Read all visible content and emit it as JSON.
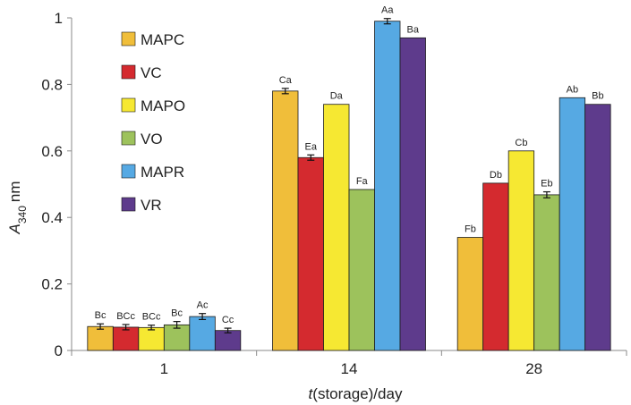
{
  "chart_data": {
    "type": "bar",
    "categories": [
      "1",
      "14",
      "28"
    ],
    "ylabel_main": "A",
    "ylabel_sub": "340",
    "ylabel_unit": "nm",
    "xlabel_italic": "t",
    "xlabel_rest": "(storage)/day",
    "ylim": [
      0,
      1
    ],
    "yticks": [
      "0",
      "0.2",
      "0.4",
      "0.6",
      "0.8",
      "1"
    ],
    "ytick_values": [
      0,
      0.2,
      0.4,
      0.6,
      0.8,
      1.0
    ],
    "legend_position": "top-left",
    "grid": false,
    "series": [
      {
        "name": "MAPC",
        "color": "#F0BE3A",
        "values": [
          0.072,
          0.78,
          0.34
        ],
        "errors": [
          0.008,
          0.008,
          0
        ],
        "labels": [
          "Bc",
          "Ca",
          "Fb"
        ]
      },
      {
        "name": "VC",
        "color": "#D42A2F",
        "values": [
          0.07,
          0.58,
          0.503
        ],
        "errors": [
          0.008,
          0.008,
          0
        ],
        "labels": [
          "BCc",
          "Ea",
          "Db"
        ]
      },
      {
        "name": "MAPO",
        "color": "#F6E832",
        "values": [
          0.069,
          0.74,
          0.6
        ],
        "errors": [
          0.007,
          0,
          0
        ],
        "labels": [
          "BCc",
          "Da",
          "Cb"
        ]
      },
      {
        "name": "VO",
        "color": "#9DC25C",
        "values": [
          0.077,
          0.484,
          0.468
        ],
        "errors": [
          0.01,
          0,
          0.009
        ],
        "labels": [
          "Bc",
          "Fa",
          "Eb"
        ]
      },
      {
        "name": "MAPR",
        "color": "#56A9E3",
        "values": [
          0.102,
          0.99,
          0.76
        ],
        "errors": [
          0.009,
          0.008,
          0
        ],
        "labels": [
          "Ac",
          "Aa",
          "Ab"
        ]
      },
      {
        "name": "VR",
        "color": "#5E3B8C",
        "values": [
          0.06,
          0.94,
          0.74
        ],
        "errors": [
          0.007,
          0,
          0
        ],
        "labels": [
          "Cc",
          "Ba",
          "Bb"
        ]
      }
    ]
  }
}
